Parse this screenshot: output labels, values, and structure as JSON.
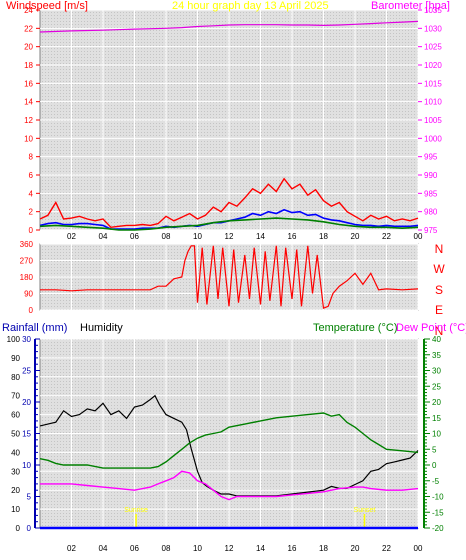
{
  "header": {
    "left_title": "Windspeed [m/s]",
    "center_title": "24 hour graph day   13 April 2025",
    "right_title": "Barometer [hpa]"
  },
  "colors": {
    "plot_bg": "#d8d8d8",
    "plot_bg_light": "#e6e6e6",
    "frame": "#7f7f7f",
    "wind_avg": "#0000ff",
    "wind_gust": "#ff0000",
    "wind_green": "#008000",
    "baro": "#e000e0",
    "direction": "#ff0000",
    "temperature": "#008000",
    "dewpoint": "#ff00ff",
    "humidity": "#000000",
    "rainfall": "#0000ff",
    "sun_marker": "#ffff00",
    "title_yellow": "#ffff00",
    "left_axis_red": "#ff0000",
    "right_axis_magenta": "#ff00ff",
    "rain_axis_blue": "#0000b0",
    "temp_axis_green": "#008000"
  },
  "chart_data": [
    {
      "type": "line",
      "id": "wind_baro",
      "title": "24 hour graph day   13 April 2025",
      "x_ticks": [
        "02",
        "04",
        "06",
        "08",
        "10",
        "12",
        "14",
        "16",
        "18",
        "20",
        "22",
        "00"
      ],
      "x_range_hours": [
        0,
        24
      ],
      "ylabel_left": "Windspeed [m/s]",
      "ylim_left": [
        0,
        24
      ],
      "yticks_left": [
        0,
        2,
        4,
        6,
        8,
        10,
        12,
        14,
        16,
        18,
        20,
        22,
        24
      ],
      "ylabel_right": "Barometer [hpa]",
      "ylim_right": [
        975,
        1035
      ],
      "yticks_right": [
        975,
        980,
        985,
        990,
        995,
        1000,
        1005,
        1010,
        1015,
        1020,
        1025,
        1030,
        1035
      ],
      "grid": true,
      "series": [
        {
          "key": "barometer",
          "axis": "right",
          "x": [
            0,
            2,
            4,
            6,
            8,
            9,
            10,
            11,
            12,
            13,
            14,
            15,
            16,
            17,
            18,
            19,
            20,
            21,
            22,
            23,
            24
          ],
          "values": [
            1029.0,
            1029.3,
            1029.5,
            1029.8,
            1030.0,
            1030.2,
            1030.5,
            1030.7,
            1030.9,
            1031.0,
            1031.0,
            1031.0,
            1030.9,
            1030.9,
            1030.8,
            1030.9,
            1031.1,
            1031.3,
            1031.5,
            1031.7,
            1031.9
          ]
        },
        {
          "key": "gust",
          "axis": "left",
          "x": [
            0,
            0.5,
            1,
            1.5,
            2,
            2.5,
            3,
            3.5,
            4,
            4.5,
            5,
            5.5,
            6,
            6.5,
            7,
            7.5,
            8,
            8.5,
            9,
            9.5,
            10,
            10.5,
            11,
            11.5,
            12,
            12.5,
            13,
            13.5,
            14,
            14.5,
            15,
            15.5,
            16,
            16.5,
            17,
            17.5,
            18,
            18.5,
            19,
            19.5,
            20,
            20.5,
            21,
            21.5,
            22,
            22.5,
            23,
            23.5,
            24
          ],
          "values": [
            1.2,
            1.6,
            3.0,
            1.2,
            1.3,
            1.5,
            1.2,
            1.0,
            1.2,
            0.3,
            0.4,
            0.5,
            0.5,
            0.6,
            0.5,
            0.7,
            1.5,
            1.0,
            1.4,
            1.8,
            1.2,
            1.6,
            2.5,
            2.0,
            3.0,
            2.6,
            3.5,
            4.5,
            4.0,
            5.0,
            4.2,
            5.6,
            4.5,
            5.0,
            3.8,
            4.4,
            3.2,
            2.6,
            3.0,
            2.0,
            1.5,
            1.0,
            1.6,
            1.2,
            1.5,
            1.0,
            1.2,
            1.0,
            1.3
          ]
        },
        {
          "key": "average",
          "axis": "left",
          "x": [
            0,
            0.5,
            1,
            1.5,
            2,
            2.5,
            3,
            3.5,
            4,
            4.5,
            5,
            5.5,
            6,
            6.5,
            7,
            7.5,
            8,
            8.5,
            9,
            9.5,
            10,
            10.5,
            11,
            11.5,
            12,
            12.5,
            13,
            13.5,
            14,
            14.5,
            15,
            15.5,
            16,
            16.5,
            17,
            17.5,
            18,
            18.5,
            19,
            19.5,
            20,
            20.5,
            21,
            21.5,
            22,
            22.5,
            23,
            23.5,
            24
          ],
          "values": [
            0.5,
            0.7,
            0.8,
            0.6,
            0.6,
            0.7,
            0.7,
            0.6,
            0.5,
            0.1,
            0.1,
            0.1,
            0.1,
            0.2,
            0.2,
            0.2,
            0.4,
            0.3,
            0.4,
            0.5,
            0.4,
            0.6,
            0.8,
            0.8,
            1.0,
            1.2,
            1.4,
            1.8,
            1.6,
            2.0,
            1.8,
            2.2,
            1.9,
            2.0,
            1.6,
            1.7,
            1.3,
            1.1,
            1.0,
            0.8,
            0.6,
            0.5,
            0.5,
            0.4,
            0.5,
            0.4,
            0.4,
            0.4,
            0.5
          ]
        },
        {
          "key": "calm",
          "axis": "left",
          "x": [
            0,
            1,
            2,
            3,
            4,
            5,
            6,
            7,
            8,
            9,
            10,
            11,
            12,
            13,
            14,
            15,
            16,
            17,
            18,
            19,
            20,
            21,
            22,
            23,
            24
          ],
          "values": [
            0.4,
            0.5,
            0.4,
            0.3,
            0.2,
            0.0,
            0.0,
            0.1,
            0.3,
            0.4,
            0.5,
            0.8,
            1.0,
            1.1,
            1.2,
            1.3,
            1.2,
            1.1,
            0.9,
            0.6,
            0.4,
            0.3,
            0.3,
            0.2,
            0.3
          ]
        }
      ]
    },
    {
      "type": "line",
      "id": "direction",
      "x_ticks": [
        "02",
        "04",
        "06",
        "08",
        "10",
        "12",
        "14",
        "16",
        "18",
        "20",
        "22",
        "00"
      ],
      "x_range_hours": [
        0,
        24
      ],
      "ylim": [
        0,
        360
      ],
      "yticks": [
        0,
        90,
        180,
        270,
        360
      ],
      "right_labels": [
        "N",
        "W",
        "S",
        "E",
        "N"
      ],
      "grid": true,
      "series": [
        {
          "key": "wind_direction",
          "x": [
            0,
            1,
            2,
            3,
            4,
            5,
            6,
            7,
            7.5,
            8,
            8.5,
            9,
            9.2,
            9.4,
            9.6,
            9.8,
            10,
            10.3,
            10.6,
            11,
            11.3,
            11.6,
            12,
            12.3,
            12.6,
            13,
            13.3,
            13.6,
            14,
            14.3,
            14.6,
            15,
            15.3,
            15.6,
            16,
            16.3,
            16.6,
            17,
            17.3,
            17.6,
            18,
            18.3,
            18.6,
            19,
            19.5,
            20,
            20.5,
            21,
            21.5,
            22,
            23,
            24
          ],
          "values": [
            110,
            110,
            105,
            110,
            110,
            110,
            110,
            110,
            130,
            130,
            170,
            180,
            270,
            320,
            350,
            350,
            40,
            340,
            30,
            350,
            60,
            340,
            20,
            330,
            40,
            300,
            60,
            340,
            30,
            320,
            50,
            350,
            20,
            340,
            60,
            330,
            20,
            350,
            90,
            300,
            10,
            20,
            90,
            130,
            160,
            200,
            140,
            200,
            110,
            115,
            110,
            115
          ]
        }
      ]
    },
    {
      "type": "line",
      "id": "temp_hum",
      "x_ticks": [
        "02",
        "04",
        "06",
        "08",
        "10",
        "12",
        "14",
        "16",
        "18",
        "20",
        "22",
        "00"
      ],
      "x_range_hours": [
        0,
        24
      ],
      "left_title_rain": "Rainfall (mm)",
      "left_title_hum": "Humidity",
      "right_title_temp": "Temperature (°C)",
      "right_title_dew": "Dew Point (°C)",
      "hum_ylim": [
        0,
        100
      ],
      "hum_yticks": [
        0,
        10,
        20,
        30,
        40,
        50,
        60,
        70,
        80,
        90,
        100
      ],
      "rain_ylim": [
        0,
        30
      ],
      "rain_yticks": [
        0,
        5,
        10,
        15,
        20,
        25,
        30
      ],
      "temp_ylim": [
        -20,
        40
      ],
      "temp_yticks": [
        -20,
        -15,
        -10,
        -5,
        0,
        5,
        10,
        15,
        20,
        25,
        30,
        35,
        40
      ],
      "grid": true,
      "annotations": [
        {
          "label": "Sunrise",
          "x": 6.1
        },
        {
          "label": "Sunset",
          "x": 20.6
        }
      ],
      "series": [
        {
          "key": "humidity",
          "axis": "hum",
          "x": [
            0,
            0.5,
            1,
            1.5,
            2,
            2.5,
            3,
            3.5,
            4,
            4.5,
            5,
            5.5,
            6,
            6.5,
            7,
            7.3,
            7.6,
            8,
            8.5,
            9,
            9.3,
            9.6,
            10,
            10.3,
            10.6,
            11,
            11.5,
            12,
            12.5,
            13,
            14,
            15,
            16,
            17,
            18,
            18.5,
            19,
            19.5,
            20,
            20.5,
            21,
            21.5,
            22,
            22.5,
            23,
            23.5,
            24
          ],
          "values": [
            54,
            55,
            56,
            62,
            59,
            60,
            63,
            62,
            66,
            60,
            62,
            58,
            64,
            65,
            68,
            70,
            65,
            60,
            58,
            56,
            52,
            42,
            30,
            24,
            22,
            20,
            18,
            18,
            17,
            17,
            17,
            17,
            18,
            19,
            20,
            22,
            21,
            21,
            23,
            25,
            30,
            31,
            34,
            35,
            36,
            37,
            41
          ]
        },
        {
          "key": "rainfall",
          "axis": "rain",
          "x": [
            0,
            24
          ],
          "values": [
            0,
            0
          ]
        },
        {
          "key": "temperature",
          "axis": "temp",
          "x": [
            0,
            0.5,
            1,
            1.5,
            2,
            3,
            4,
            5,
            6,
            7,
            7.5,
            8,
            8.5,
            9,
            9.5,
            10,
            10.5,
            11,
            11.5,
            12,
            13,
            14,
            15,
            16,
            17,
            18,
            18.5,
            19,
            19.5,
            20,
            20.5,
            21,
            21.5,
            22,
            23,
            24
          ],
          "values": [
            2.0,
            1.5,
            0.5,
            0.0,
            0.0,
            0.0,
            -1.0,
            -1.0,
            -1.0,
            -1.0,
            -0.5,
            1.0,
            3.0,
            5.0,
            7.0,
            8.5,
            9.5,
            10.0,
            10.5,
            12.0,
            13.0,
            14.0,
            15.0,
            15.5,
            16.0,
            16.5,
            15.5,
            16.0,
            13.5,
            12.0,
            10.0,
            8.0,
            6.5,
            5.0,
            4.5,
            4.0
          ]
        },
        {
          "key": "dewpoint",
          "axis": "temp",
          "x": [
            0,
            1,
            2,
            3,
            4,
            5,
            6,
            7,
            7.5,
            8,
            8.5,
            9,
            9.5,
            10,
            10.5,
            11,
            11.5,
            12,
            12.5,
            13,
            14,
            15,
            16,
            17,
            18,
            19,
            20,
            20.5,
            21,
            22,
            23,
            24
          ],
          "values": [
            -6,
            -6,
            -6,
            -6.5,
            -7,
            -7.5,
            -8,
            -7,
            -6,
            -5,
            -4,
            -2,
            -2.5,
            -5,
            -6,
            -8,
            -10,
            -11,
            -10,
            -10,
            -10,
            -10,
            -9.5,
            -9,
            -8.5,
            -7.5,
            -7,
            -7,
            -7.5,
            -8,
            -8,
            -7.5
          ]
        }
      ]
    }
  ]
}
